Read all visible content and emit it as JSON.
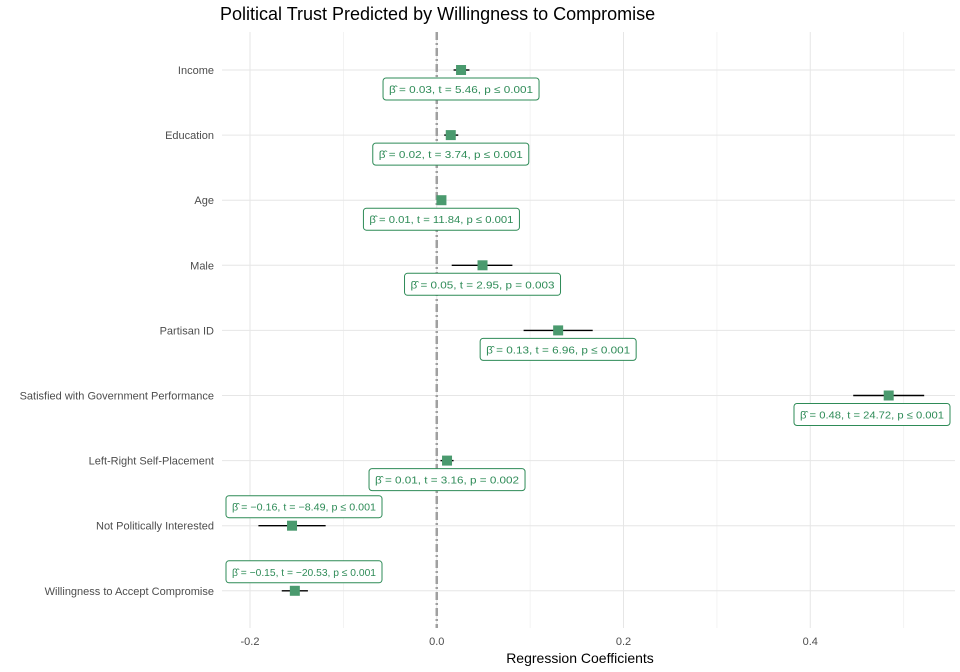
{
  "chart_data": {
    "type": "scatter",
    "title": "Political Trust Predicted by Willingness to Compromise",
    "xlabel": "Regression Coefficients",
    "ylabel": "",
    "xlim": [
      -0.23,
      0.555
    ],
    "x_ticks": [
      -0.2,
      0.0,
      0.2,
      0.4
    ],
    "x_tick_labels": [
      "-0.2",
      "0.0",
      "0.2",
      "0.4"
    ],
    "reference_line": 0,
    "grid": true,
    "colors": {
      "point": "#4a9a6e",
      "label": "#2e8b57",
      "ref_line": "#a0a0a0",
      "ci": "#000000"
    },
    "terms": [
      {
        "name": "Income",
        "estimate": 0.026,
        "ci_low": 0.018,
        "ci_high": 0.035,
        "label": "β̂ = 0.03,  t = 5.46,  p ≤ 0.001"
      },
      {
        "name": "Education",
        "estimate": 0.015,
        "ci_low": 0.008,
        "ci_high": 0.023,
        "label": "β̂ = 0.02,  t = 3.74,  p ≤ 0.001"
      },
      {
        "name": "Age",
        "estimate": 0.005,
        "ci_low": 0.004,
        "ci_high": 0.006,
        "label": "β̂ = 0.01,  t = 11.84,  p ≤ 0.001"
      },
      {
        "name": "Male",
        "estimate": 0.049,
        "ci_low": 0.016,
        "ci_high": 0.081,
        "label": "β̂ = 0.05,  t = 2.95,  p = 0.003"
      },
      {
        "name": "Partisan ID",
        "estimate": 0.13,
        "ci_low": 0.093,
        "ci_high": 0.167,
        "label": "β̂ = 0.13,  t = 6.96,  p ≤ 0.001"
      },
      {
        "name": "Satisfied with Government Performance",
        "estimate": 0.484,
        "ci_low": 0.446,
        "ci_high": 0.522,
        "label": "β̂ = 0.48,  t = 24.72,  p ≤ 0.001"
      },
      {
        "name": "Left-Right Self-Placement",
        "estimate": 0.011,
        "ci_low": 0.004,
        "ci_high": 0.018,
        "label": "β̂ = 0.01,  t = 3.16,  p = 0.002"
      },
      {
        "name": "Not Politically Interested",
        "estimate": -0.155,
        "ci_low": -0.191,
        "ci_high": -0.119,
        "label": "β̂ = −0.16,  t = −8.49,  p ≤ 0.001"
      },
      {
        "name": "Willingness to Accept Compromise",
        "estimate": -0.152,
        "ci_low": -0.166,
        "ci_high": -0.138,
        "label": "β̂ = −0.15,  t = −20.53,  p ≤ 0.001"
      }
    ]
  }
}
